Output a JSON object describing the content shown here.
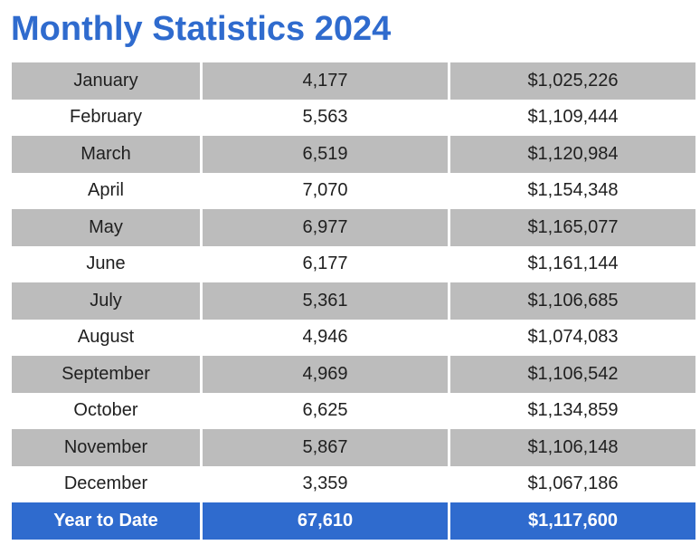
{
  "title": "Monthly Statistics 2024",
  "rows": [
    {
      "month": "January",
      "count": "4,177",
      "amount": "$1,025,226"
    },
    {
      "month": "February",
      "count": "5,563",
      "amount": "$1,109,444"
    },
    {
      "month": "March",
      "count": "6,519",
      "amount": "$1,120,984"
    },
    {
      "month": "April",
      "count": "7,070",
      "amount": "$1,154,348"
    },
    {
      "month": "May",
      "count": "6,977",
      "amount": "$1,165,077"
    },
    {
      "month": "June",
      "count": "6,177",
      "amount": "$1,161,144"
    },
    {
      "month": "July",
      "count": "5,361",
      "amount": "$1,106,685"
    },
    {
      "month": "August",
      "count": "4,946",
      "amount": "$1,074,083"
    },
    {
      "month": "September",
      "count": "4,969",
      "amount": "$1,106,542"
    },
    {
      "month": "October",
      "count": "6,625",
      "amount": "$1,134,859"
    },
    {
      "month": "November",
      "count": "5,867",
      "amount": "$1,106,148"
    },
    {
      "month": "December",
      "count": "3,359",
      "amount": "$1,067,186"
    }
  ],
  "total": {
    "label": "Year to Date",
    "count": "67,610",
    "amount": "$1,117,600"
  },
  "colors": {
    "title": "#2f6bce",
    "row_shade": "#bcbcbc",
    "total_bg": "#2f6bce",
    "total_text": "#ffffff"
  }
}
